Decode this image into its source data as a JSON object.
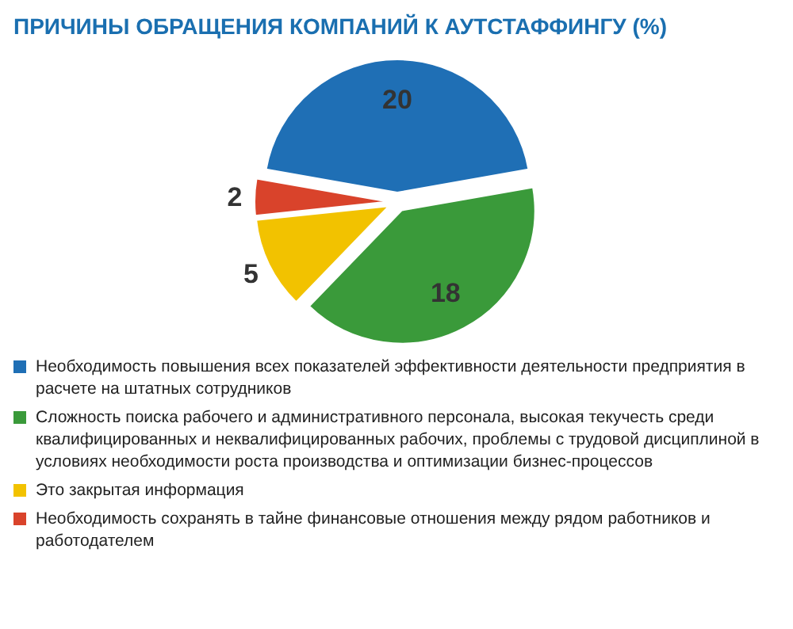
{
  "chart_data": {
    "type": "pie",
    "title": "ПРИЧИНЫ ОБРАЩЕНИЯ КОМПАНИЙ К АУТСТАФФИНГУ (%)",
    "categories": [
      "Необходимость повышения всех показателей эффективности деятельности предприятия в расчете на штатных сотрудников",
      "Сложность поиска рабочего и административного персонала, высокая текучесть среди квалифицированных и неквалифицированных рабочих, проблемы с трудовой дисциплиной в условиях необходимости роста производства и оптимизации бизнес-процессов",
      "Это закрытая информация",
      "Необходимость сохранять в тайне финансовые отношения между рядом работников и работодателем"
    ],
    "values": [
      20,
      18,
      5,
      2
    ],
    "colors": [
      "#1f6fb5",
      "#3a9a3a",
      "#f2c200",
      "#d9432b"
    ],
    "data_labels": true,
    "legend": "bottom"
  }
}
